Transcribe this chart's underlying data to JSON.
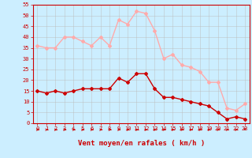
{
  "x": [
    0,
    1,
    2,
    3,
    4,
    5,
    6,
    7,
    8,
    9,
    10,
    11,
    12,
    13,
    14,
    15,
    16,
    17,
    18,
    19,
    20,
    21,
    22,
    23
  ],
  "wind_avg": [
    15,
    14,
    15,
    14,
    15,
    16,
    16,
    16,
    16,
    21,
    19,
    23,
    23,
    16,
    12,
    12,
    11,
    10,
    9,
    8,
    5,
    2,
    3,
    2
  ],
  "wind_gust": [
    36,
    35,
    35,
    40,
    40,
    38,
    36,
    40,
    36,
    48,
    46,
    52,
    51,
    43,
    30,
    32,
    27,
    26,
    24,
    19,
    19,
    7,
    6,
    9
  ],
  "wind_dir_last_down": true,
  "xlabel": "Vent moyen/en rafales ( km/h )",
  "ylim": [
    0,
    55
  ],
  "yticks": [
    0,
    5,
    10,
    15,
    20,
    25,
    30,
    35,
    40,
    45,
    50,
    55
  ],
  "color_avg": "#cc0000",
  "color_gust": "#ffaaaa",
  "bg_color": "#cceeff",
  "grid_color": "#bbbbbb",
  "marker": "D",
  "marker_size": 2,
  "line_width": 1.0,
  "tick_fontsize": 5,
  "xlabel_fontsize": 6.5
}
